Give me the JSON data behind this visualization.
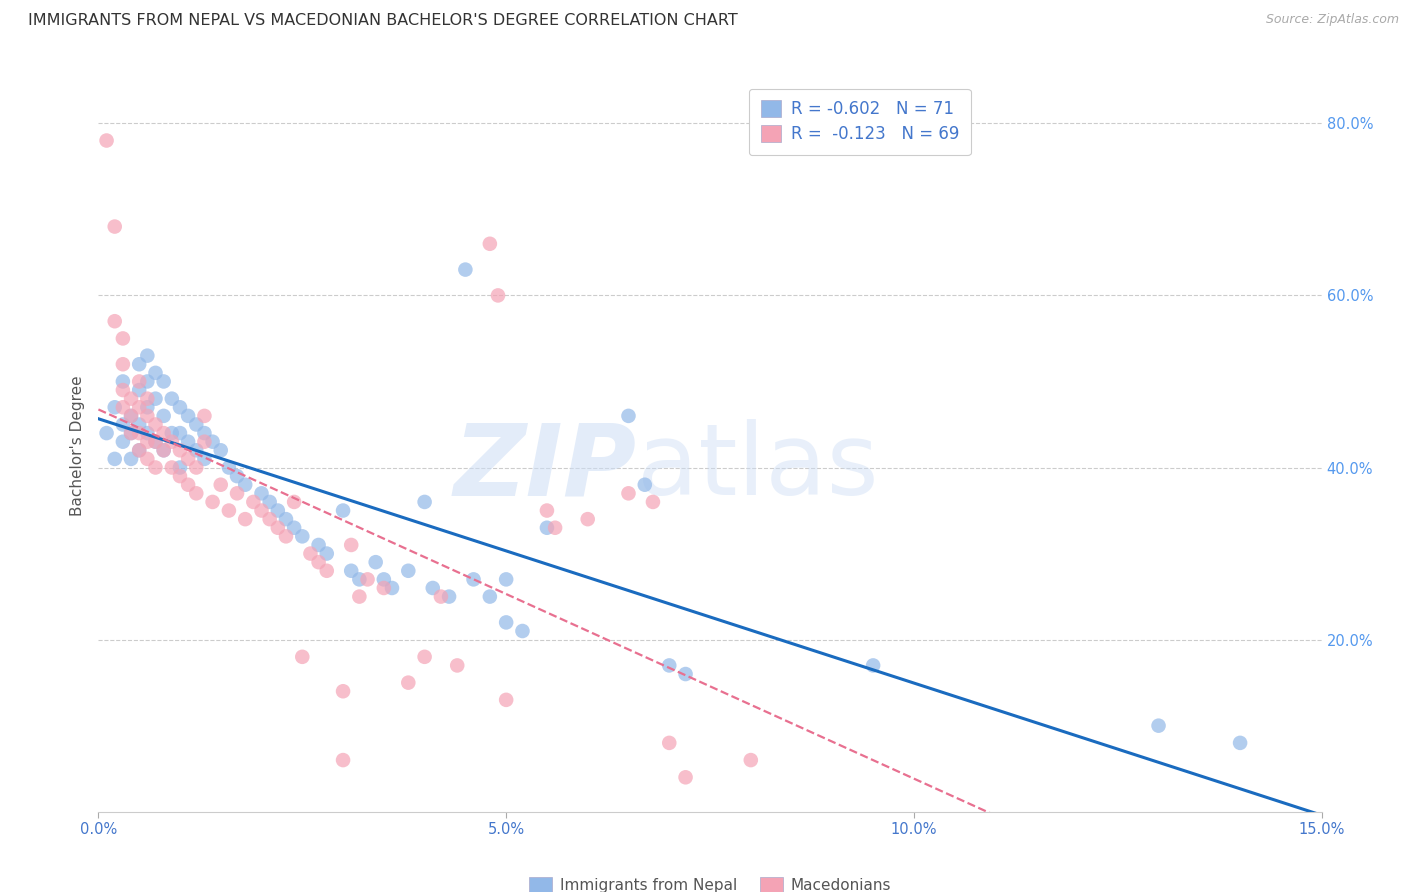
{
  "title": "IMMIGRANTS FROM NEPAL VS MACEDONIAN BACHELOR'S DEGREE CORRELATION CHART",
  "source": "Source: ZipAtlas.com",
  "ylabel": "Bachelor's Degree",
  "x_min": 0.0,
  "x_max": 0.15,
  "y_min": 0.0,
  "y_max": 0.85,
  "x_ticks": [
    0.0,
    0.05,
    0.1,
    0.15
  ],
  "x_tick_labels": [
    "0.0%",
    "5.0%",
    "10.0%",
    "15.0%"
  ],
  "y_ticks": [
    0.2,
    0.4,
    0.6,
    0.8
  ],
  "y_tick_labels": [
    "20.0%",
    "40.0%",
    "60.0%",
    "80.0%"
  ],
  "nepal_color": "#92b8e8",
  "macedonian_color": "#f4a3b5",
  "nepal_R": -0.602,
  "nepal_N": 71,
  "macedonian_R": -0.123,
  "macedonian_N": 69,
  "legend_label_nepal": "Immigrants from Nepal",
  "legend_label_macedonian": "Macedonians",
  "watermark_zip": "ZIP",
  "watermark_atlas": "atlas",
  "nepal_points": [
    [
      0.001,
      0.44
    ],
    [
      0.002,
      0.47
    ],
    [
      0.002,
      0.41
    ],
    [
      0.003,
      0.5
    ],
    [
      0.003,
      0.45
    ],
    [
      0.003,
      0.43
    ],
    [
      0.004,
      0.46
    ],
    [
      0.004,
      0.44
    ],
    [
      0.004,
      0.41
    ],
    [
      0.005,
      0.52
    ],
    [
      0.005,
      0.49
    ],
    [
      0.005,
      0.45
    ],
    [
      0.005,
      0.42
    ],
    [
      0.006,
      0.53
    ],
    [
      0.006,
      0.5
    ],
    [
      0.006,
      0.47
    ],
    [
      0.006,
      0.44
    ],
    [
      0.007,
      0.51
    ],
    [
      0.007,
      0.48
    ],
    [
      0.007,
      0.43
    ],
    [
      0.008,
      0.5
    ],
    [
      0.008,
      0.46
    ],
    [
      0.008,
      0.42
    ],
    [
      0.009,
      0.48
    ],
    [
      0.009,
      0.44
    ],
    [
      0.01,
      0.47
    ],
    [
      0.01,
      0.44
    ],
    [
      0.01,
      0.4
    ],
    [
      0.011,
      0.46
    ],
    [
      0.011,
      0.43
    ],
    [
      0.012,
      0.45
    ],
    [
      0.012,
      0.42
    ],
    [
      0.013,
      0.44
    ],
    [
      0.013,
      0.41
    ],
    [
      0.014,
      0.43
    ],
    [
      0.015,
      0.42
    ],
    [
      0.016,
      0.4
    ],
    [
      0.017,
      0.39
    ],
    [
      0.018,
      0.38
    ],
    [
      0.02,
      0.37
    ],
    [
      0.021,
      0.36
    ],
    [
      0.022,
      0.35
    ],
    [
      0.023,
      0.34
    ],
    [
      0.024,
      0.33
    ],
    [
      0.025,
      0.32
    ],
    [
      0.027,
      0.31
    ],
    [
      0.028,
      0.3
    ],
    [
      0.03,
      0.35
    ],
    [
      0.031,
      0.28
    ],
    [
      0.032,
      0.27
    ],
    [
      0.034,
      0.29
    ],
    [
      0.035,
      0.27
    ],
    [
      0.036,
      0.26
    ],
    [
      0.038,
      0.28
    ],
    [
      0.04,
      0.36
    ],
    [
      0.041,
      0.26
    ],
    [
      0.043,
      0.25
    ],
    [
      0.045,
      0.63
    ],
    [
      0.046,
      0.27
    ],
    [
      0.048,
      0.25
    ],
    [
      0.05,
      0.22
    ],
    [
      0.05,
      0.27
    ],
    [
      0.052,
      0.21
    ],
    [
      0.055,
      0.33
    ],
    [
      0.065,
      0.46
    ],
    [
      0.067,
      0.38
    ],
    [
      0.07,
      0.17
    ],
    [
      0.072,
      0.16
    ],
    [
      0.095,
      0.17
    ],
    [
      0.13,
      0.1
    ],
    [
      0.14,
      0.08
    ]
  ],
  "macedonian_points": [
    [
      0.001,
      0.78
    ],
    [
      0.002,
      0.68
    ],
    [
      0.002,
      0.57
    ],
    [
      0.003,
      0.55
    ],
    [
      0.003,
      0.52
    ],
    [
      0.003,
      0.49
    ],
    [
      0.003,
      0.47
    ],
    [
      0.004,
      0.48
    ],
    [
      0.004,
      0.46
    ],
    [
      0.004,
      0.44
    ],
    [
      0.005,
      0.5
    ],
    [
      0.005,
      0.47
    ],
    [
      0.005,
      0.44
    ],
    [
      0.005,
      0.42
    ],
    [
      0.006,
      0.48
    ],
    [
      0.006,
      0.46
    ],
    [
      0.006,
      0.43
    ],
    [
      0.006,
      0.41
    ],
    [
      0.007,
      0.45
    ],
    [
      0.007,
      0.43
    ],
    [
      0.007,
      0.4
    ],
    [
      0.008,
      0.44
    ],
    [
      0.008,
      0.42
    ],
    [
      0.009,
      0.43
    ],
    [
      0.009,
      0.4
    ],
    [
      0.01,
      0.42
    ],
    [
      0.01,
      0.39
    ],
    [
      0.011,
      0.41
    ],
    [
      0.011,
      0.38
    ],
    [
      0.012,
      0.4
    ],
    [
      0.012,
      0.37
    ],
    [
      0.013,
      0.46
    ],
    [
      0.013,
      0.43
    ],
    [
      0.014,
      0.36
    ],
    [
      0.015,
      0.38
    ],
    [
      0.016,
      0.35
    ],
    [
      0.017,
      0.37
    ],
    [
      0.018,
      0.34
    ],
    [
      0.019,
      0.36
    ],
    [
      0.02,
      0.35
    ],
    [
      0.021,
      0.34
    ],
    [
      0.022,
      0.33
    ],
    [
      0.023,
      0.32
    ],
    [
      0.024,
      0.36
    ],
    [
      0.025,
      0.18
    ],
    [
      0.026,
      0.3
    ],
    [
      0.027,
      0.29
    ],
    [
      0.028,
      0.28
    ],
    [
      0.03,
      0.14
    ],
    [
      0.031,
      0.31
    ],
    [
      0.032,
      0.25
    ],
    [
      0.033,
      0.27
    ],
    [
      0.035,
      0.26
    ],
    [
      0.038,
      0.15
    ],
    [
      0.04,
      0.18
    ],
    [
      0.042,
      0.25
    ],
    [
      0.044,
      0.17
    ],
    [
      0.048,
      0.66
    ],
    [
      0.049,
      0.6
    ],
    [
      0.05,
      0.13
    ],
    [
      0.055,
      0.35
    ],
    [
      0.056,
      0.33
    ],
    [
      0.06,
      0.34
    ],
    [
      0.065,
      0.37
    ],
    [
      0.068,
      0.36
    ],
    [
      0.07,
      0.08
    ],
    [
      0.072,
      0.04
    ],
    [
      0.08,
      0.06
    ],
    [
      0.03,
      0.06
    ]
  ],
  "trendline_nepal_color": "#1a6bbf",
  "trendline_macedonian_color": "#e87090",
  "background_color": "#ffffff",
  "grid_color": "#cccccc",
  "right_axis_color": "#5599ee",
  "legend_text_color": "#4477cc",
  "title_color": "#333333",
  "title_fontsize": 11.5,
  "axis_label_fontsize": 11,
  "tick_fontsize": 10.5
}
